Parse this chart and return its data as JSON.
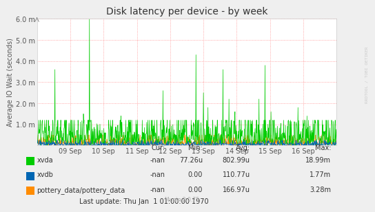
{
  "title": "Disk latency per device - by week",
  "ylabel": "Average IO Wait (seconds)",
  "background_color": "#EFEFEF",
  "plot_bg_color": "#FFFFFF",
  "grid_color": "#FF8080",
  "xvda_color": "#00CC00",
  "xvdb_color": "#0066B3",
  "pottery_color": "#FF8C00",
  "ylim_max": 0.006,
  "ytick_vals": [
    0.001,
    0.002,
    0.003,
    0.004,
    0.005,
    0.006
  ],
  "ytick_labels": [
    "1.0 m",
    "2.0 m",
    "3.0 m",
    "4.0 m",
    "5.0 m",
    "6.0 m"
  ],
  "xtick_labels": [
    "09 Sep",
    "10 Sep",
    "11 Sep",
    "12 Sep",
    "13 Sep",
    "14 Sep",
    "15 Sep",
    "16 Sep"
  ],
  "legend_labels": [
    "xvda",
    "xvdb",
    "pottery_data/pottery_data"
  ],
  "legend_cur": [
    "-nan",
    "-nan",
    "-nan"
  ],
  "legend_min": [
    "77.26u",
    "0.00",
    "0.00"
  ],
  "legend_avg": [
    "802.99u",
    "110.77u",
    "166.97u"
  ],
  "legend_max": [
    "18.99m",
    "1.77m",
    "3.28m"
  ],
  "last_update": "Last update: Thu Jan  1 01:00:00 1970",
  "munin_version": "Munin 2.0.75",
  "watermark": "RRDTOOL / TOBI OETIKER",
  "title_fontsize": 10,
  "axis_label_fontsize": 7,
  "tick_fontsize": 7,
  "legend_fontsize": 7,
  "n_points": 1000
}
